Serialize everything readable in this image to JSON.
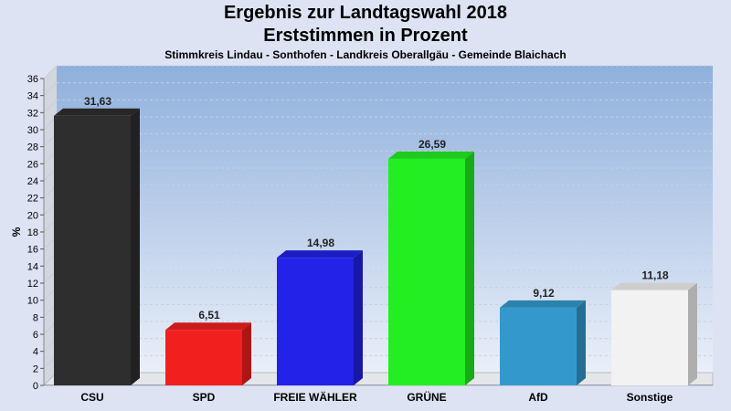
{
  "header": {
    "title_line1": "Ergebnis zur Landtagswahl 2018",
    "title_line2": "Erststimmen in Prozent",
    "subtitle": "Stimmkreis Lindau - Sonthofen - Landkreis Oberallgäu - Gemeinde Blaichach"
  },
  "chart_data": {
    "type": "bar",
    "title": "Ergebnis zur Landtagswahl 2018",
    "subtitle": "Erststimmen in Prozent",
    "xlabel": "",
    "ylabel": "%",
    "ylim": [
      0,
      36
    ],
    "ytick_step": 2,
    "grid": true,
    "categories": [
      "CSU",
      "SPD",
      "FREIE WÄHLER",
      "GRÜNE",
      "AfD",
      "Sonstige"
    ],
    "values": [
      31.63,
      6.51,
      14.98,
      26.59,
      9.12,
      11.18
    ],
    "value_labels": [
      "31,63",
      "6,51",
      "14,98",
      "26,59",
      "9,12",
      "11,18"
    ],
    "colors": [
      "#2e2e2e",
      "#f21f1f",
      "#2222e8",
      "#22ee22",
      "#3399cc",
      "#f2f2f2"
    ]
  }
}
